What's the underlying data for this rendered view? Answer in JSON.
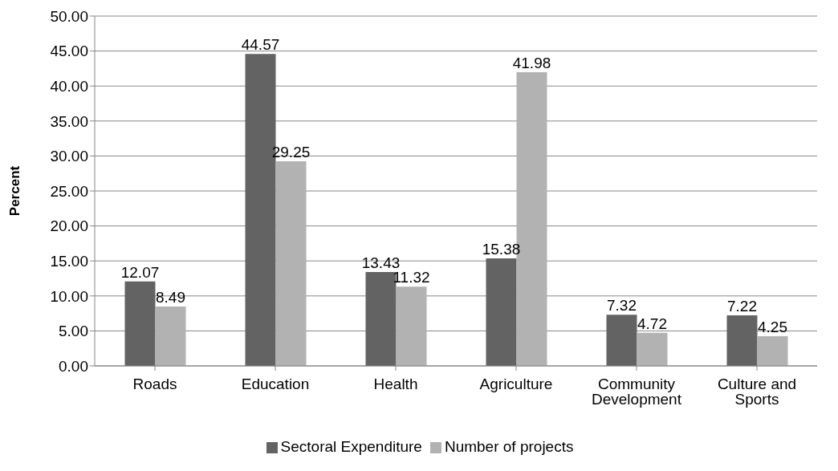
{
  "chart_data": {
    "type": "bar",
    "ylabel": "Percent",
    "categories": [
      "Roads",
      "Education",
      "Health",
      "Agriculture",
      "Community Development",
      "Culture and Sports"
    ],
    "series": [
      {
        "name": "Sectoral Expenditure",
        "color": "#636363",
        "values": [
          12.07,
          44.57,
          13.43,
          15.38,
          7.32,
          7.22
        ]
      },
      {
        "name": "Number of projects",
        "color": "#b2b2b2",
        "values": [
          8.49,
          29.25,
          11.32,
          41.98,
          4.72,
          4.25
        ]
      }
    ],
    "ylim": [
      0,
      50
    ],
    "yticks": [
      {
        "value": 0,
        "label": "0.00"
      },
      {
        "value": 5,
        "label": "5.00"
      },
      {
        "value": 10,
        "label": "10.00"
      },
      {
        "value": 15,
        "label": "15.00"
      },
      {
        "value": 20,
        "label": "20.00"
      },
      {
        "value": 25,
        "label": "25.00"
      },
      {
        "value": 30,
        "label": "30.00"
      },
      {
        "value": 35,
        "label": "35.00"
      },
      {
        "value": 40,
        "label": "40.00"
      },
      {
        "value": 45,
        "label": "45.00"
      },
      {
        "value": 50,
        "label": "50.00"
      }
    ],
    "grid": "y",
    "legend": "bottom",
    "data_labels": true
  }
}
